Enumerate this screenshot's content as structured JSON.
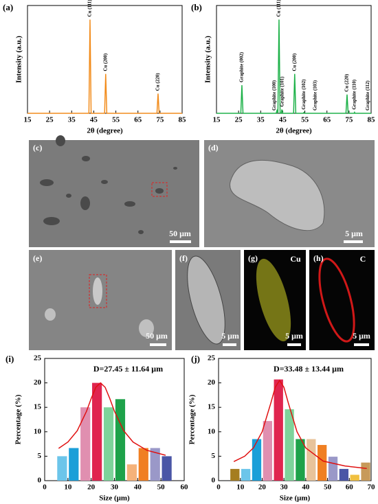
{
  "chart_data": [
    {
      "type": "line",
      "label": "(a)",
      "xlabel": "2θ (degree)",
      "ylabel": "Intensity (a.u.)",
      "xlim": [
        15,
        85
      ],
      "xticks": [
        15,
        25,
        35,
        45,
        55,
        65,
        75,
        85
      ],
      "ylim": [
        0,
        115
      ],
      "x": [
        15,
        42.8,
        43.3,
        43.8,
        49.9,
        50.4,
        50.9,
        73.6,
        74.1,
        74.6,
        85
      ],
      "series": [
        {
          "color": "#f28c1c",
          "values": [
            0,
            0,
            100,
            0,
            0,
            42,
            0,
            0,
            21,
            0,
            0
          ]
        }
      ],
      "annotations": [
        {
          "text": "Cu (111)",
          "x": 43.3
        },
        {
          "text": "Cu (200)",
          "x": 50.4
        },
        {
          "text": "Cu (220)",
          "x": 74.1
        }
      ]
    },
    {
      "type": "line",
      "label": "(b)",
      "xlabel": "2θ (degree)",
      "ylabel": "Intensity (a.u.)",
      "xlim": [
        15,
        85
      ],
      "xticks": [
        15,
        25,
        35,
        45,
        55,
        65,
        75,
        85
      ],
      "ylim": [
        0,
        115
      ],
      "x": [
        15,
        26,
        26.5,
        27,
        42,
        42.4,
        42.8,
        43.3,
        43.8,
        44.3,
        44.6,
        45,
        49.9,
        50.4,
        50.9,
        54.2,
        54.6,
        55,
        73.6,
        74.1,
        74.6,
        77.3,
        77.5,
        77.7,
        85
      ],
      "series": [
        {
          "color": "#1fb24a",
          "values": [
            0,
            0,
            30,
            0,
            0,
            3,
            0,
            100,
            0,
            0,
            4,
            0,
            0,
            42,
            0,
            0,
            1,
            0,
            0,
            20,
            0,
            0,
            1,
            0,
            0
          ]
        }
      ],
      "annotations": [
        {
          "text": "Graphite (002)",
          "x": 26.5
        },
        {
          "text": "Graphite (100)",
          "x": 41.2
        },
        {
          "text": "Graphite (101)",
          "x": 44.9
        },
        {
          "text": "Cu (111)",
          "x": 43.3
        },
        {
          "text": "Cu (200)",
          "x": 50.4
        },
        {
          "text": "Graphite (102)",
          "x": 54.6
        },
        {
          "text": "Graphite (103)",
          "x": 59.8
        },
        {
          "text": "Cu (220)",
          "x": 74.1
        },
        {
          "text": "Graphite (110)",
          "x": 77.5
        },
        {
          "text": "Graphite (112)",
          "x": 83.6
        }
      ]
    },
    {
      "type": "histogram",
      "label": "(i)",
      "xlabel": "Size (μm)",
      "ylabel": "Percentage (%)",
      "annotation": "D=27.45 ± 11.64 μm",
      "xlim": [
        0,
        60
      ],
      "xticks": [
        0,
        10,
        20,
        30,
        40,
        50,
        60
      ],
      "ylim": [
        0,
        25
      ],
      "yticks": [
        0,
        5,
        10,
        15,
        20,
        25
      ],
      "bins": [
        5,
        10,
        15,
        20,
        25,
        30,
        35,
        40,
        45,
        50,
        55
      ],
      "values": [
        5,
        6.67,
        15,
        20,
        15,
        16.67,
        3.33,
        6.67,
        6.67,
        5
      ],
      "colors": [
        "#6cc5ea",
        "#1a9fd8",
        "#e08fb0",
        "#e0254f",
        "#7ed39a",
        "#1ea24a",
        "#f5b27a",
        "#f07f22",
        "#9a98c8",
        "#4a56a6"
      ],
      "fit": {
        "color": "#e01010",
        "x": [
          6,
          10,
          14,
          18,
          20,
          22,
          24,
          26,
          28,
          30,
          34,
          38,
          44,
          52
        ],
        "values": [
          6.6,
          7.9,
          10.2,
          14.2,
          16.8,
          19.1,
          20,
          19.1,
          16.8,
          14.2,
          10.2,
          7.9,
          6.2,
          5.2
        ]
      }
    },
    {
      "type": "histogram",
      "label": "(j)",
      "xlabel": "Size (μm)",
      "ylabel": "Percentage (%)",
      "annotation": "D=33.48 ± 13.44 μm",
      "xlim": [
        0,
        70
      ],
      "xticks": [
        0,
        10,
        20,
        30,
        40,
        50,
        60,
        70
      ],
      "ylim": [
        0,
        25
      ],
      "yticks": [
        0,
        5,
        10,
        15,
        20,
        25
      ],
      "bins": [
        5,
        10,
        15,
        20,
        25,
        30,
        35,
        40,
        45,
        50,
        55,
        60,
        65,
        70
      ],
      "values": [
        2.4,
        2.4,
        8.5,
        12.2,
        20.7,
        14.6,
        8.5,
        8.5,
        7.3,
        4.9,
        2.4,
        1.2,
        3.7
      ],
      "colors": [
        "#a57d20",
        "#6cc5ea",
        "#1a9fd8",
        "#e08fb0",
        "#e0254f",
        "#7ed39a",
        "#1ea24a",
        "#e8c39a",
        "#f07f22",
        "#9a98c8",
        "#4a56a6",
        "#f0c040",
        "#c79a5a"
      ],
      "fit": {
        "color": "#e01010",
        "x": [
          7,
          12,
          16,
          20,
          24,
          26,
          28,
          30,
          32,
          36,
          40,
          48,
          58,
          68
        ],
        "values": [
          3.9,
          5.0,
          6.7,
          10.0,
          15.9,
          19.1,
          20.5,
          19.1,
          15.9,
          10.0,
          6.7,
          4.0,
          3.0,
          2.5
        ]
      }
    }
  ],
  "micrographs": [
    {
      "label": "(c)",
      "scale": "50 μm"
    },
    {
      "label": "(d)",
      "scale": "5 μm"
    },
    {
      "label": "(e)",
      "scale": "50 μm"
    },
    {
      "label": "(f)",
      "scale": "5 μm"
    },
    {
      "label": "(g)",
      "scale": "5 μm",
      "element": "Cu"
    },
    {
      "label": "(h)",
      "scale": "5 μm",
      "element": "C"
    }
  ]
}
